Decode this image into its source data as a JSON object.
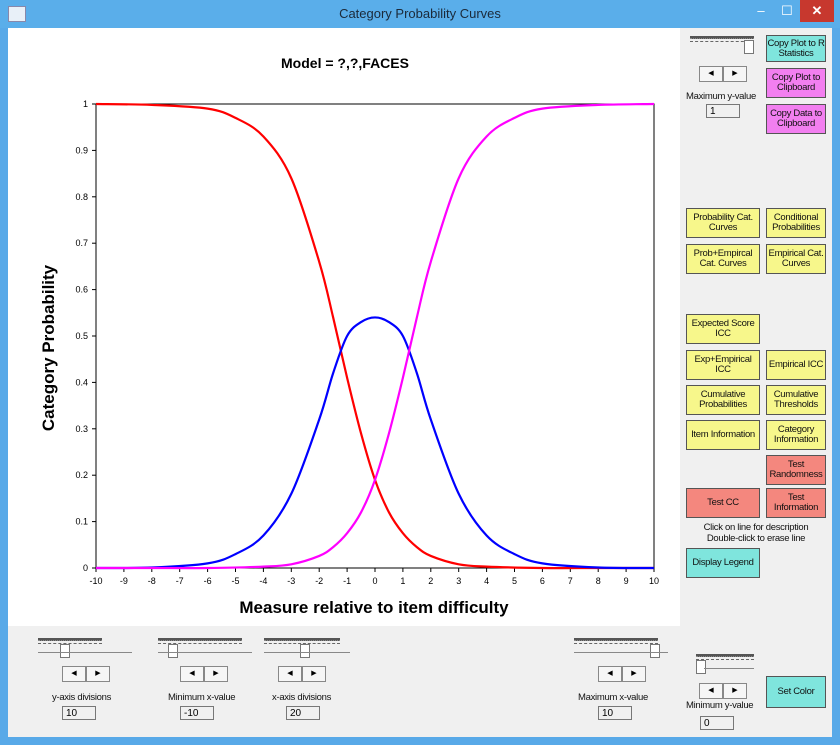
{
  "window": {
    "title": "Category Probability Curves"
  },
  "controls": {
    "minimize": "–",
    "maximize": "☐",
    "close": "✕"
  },
  "plot": {
    "model_title": "Model = ?,?,FACES",
    "ylabel": "Category  Probability",
    "xlabel": "Measure relative to item difficulty"
  },
  "chart_data": {
    "type": "line",
    "title": "Model = ?,?,FACES",
    "xlabel": "Measure relative to item difficulty",
    "ylabel": "Category  Probability",
    "xlim": [
      -10,
      10
    ],
    "ylim": [
      0,
      1
    ],
    "xticks": [
      "-10",
      "-9",
      "-8",
      "-7",
      "-6",
      "-5",
      "-4",
      "-3",
      "-2",
      "-1",
      "0",
      "1",
      "2",
      "3",
      "4",
      "5",
      "6",
      "7",
      "8",
      "9",
      "10"
    ],
    "yticks": [
      "0",
      "0.1",
      "0.2",
      "0.3",
      "0.4",
      "0.5",
      "0.6",
      "0.7",
      "0.8",
      "0.9",
      "1"
    ],
    "series": [
      {
        "color": "#ff0000",
        "x": [
          -10,
          -8,
          -6,
          -5,
          -4,
          -3,
          -2,
          -1.5,
          -1,
          -0.5,
          0,
          0.5,
          1,
          1.5,
          2,
          3,
          4,
          6,
          8,
          10
        ],
        "y": [
          1.0,
          0.998,
          0.99,
          0.97,
          0.93,
          0.84,
          0.66,
          0.54,
          0.41,
          0.29,
          0.19,
          0.12,
          0.075,
          0.045,
          0.026,
          0.008,
          0.003,
          0.0,
          0.0,
          0.0
        ]
      },
      {
        "color": "#0000ff",
        "x": [
          -10,
          -8,
          -6,
          -5,
          -4,
          -3,
          -2,
          -1.5,
          -1,
          -0.5,
          0,
          0.5,
          1,
          1.5,
          2,
          3,
          4,
          5,
          6,
          8,
          10
        ],
        "y": [
          0.0,
          0.001,
          0.01,
          0.03,
          0.07,
          0.16,
          0.32,
          0.42,
          0.5,
          0.53,
          0.54,
          0.53,
          0.5,
          0.42,
          0.32,
          0.16,
          0.07,
          0.03,
          0.01,
          0.001,
          0.0
        ]
      },
      {
        "color": "#ff00ff",
        "x": [
          -10,
          -8,
          -6,
          -4,
          -3,
          -2,
          -1.5,
          -1,
          -0.5,
          0,
          0.5,
          1,
          1.5,
          2,
          3,
          4,
          5,
          6,
          8,
          10
        ],
        "y": [
          0.0,
          0.0,
          0.0,
          0.003,
          0.008,
          0.026,
          0.045,
          0.075,
          0.12,
          0.19,
          0.29,
          0.41,
          0.54,
          0.66,
          0.84,
          0.93,
          0.97,
          0.99,
          0.998,
          1.0
        ]
      }
    ]
  },
  "right_panel": {
    "copy_r": "Copy Plot to R Statistics",
    "copy_plot": "Copy Plot to Clipboard",
    "copy_data": "Copy Data to Clipboard",
    "max_y_label": "Maximum y-value",
    "max_y_value": "1",
    "prob_cat_curves": "Probability Cat. Curves",
    "conditional_probs": "Conditional Probabilities",
    "prob_empirical": "Prob+Empircal Cat. Curves",
    "empirical_cat": "Empirical Cat. Curves",
    "expected_icc": "Expected Score ICC",
    "exp_empirical_icc": "Exp+Empirical ICC",
    "empirical_icc": "Empirical ICC",
    "cumulative_probs": "Cumulative Probabilities",
    "cumulative_thresholds": "Cumulative Thresholds",
    "item_info": "Item Information",
    "category_info": "Category Information",
    "test_randomness": "Test Randomness",
    "test_cc": "Test CC",
    "test_info": "Test Information",
    "hint1": "Click on line for description",
    "hint2": "Double-click to erase line",
    "display_legend": "Display Legend",
    "min_y_label": "Minimum y-value",
    "min_y_value": "0",
    "set_color": "Set Color"
  },
  "bottom": {
    "y_div_label": "y-axis divisions",
    "y_div_value": "10",
    "min_x_label": "Minimum x-value",
    "min_x_value": "-10",
    "x_div_label": "x-axis divisions",
    "x_div_value": "20",
    "max_x_label": "Maximum x-value",
    "max_x_value": "10"
  },
  "icons": {
    "app": "chart-app-icon",
    "spin_left": "arrow-left-icon",
    "spin_right": "arrow-right-icon"
  }
}
